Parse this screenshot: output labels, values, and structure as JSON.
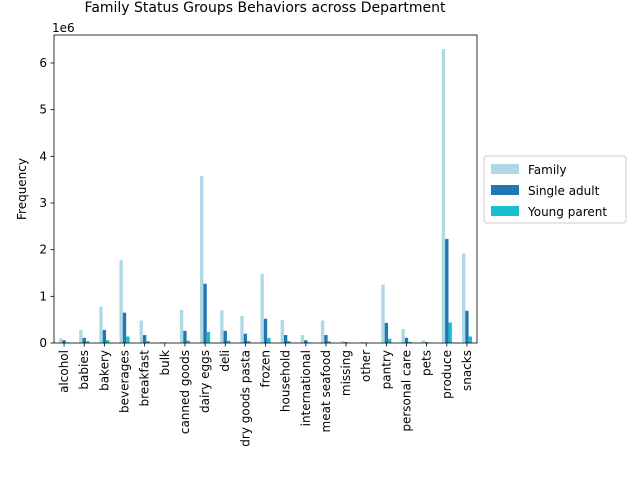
{
  "chart_data": {
    "type": "bar",
    "title": "Family Status Groups Behaviors across Department",
    "xlabel": "",
    "ylabel": "Frequency",
    "y_scale_label": "1e6",
    "ylim": [
      0,
      6600000
    ],
    "yticks": [
      0,
      1000000,
      2000000,
      3000000,
      4000000,
      5000000,
      6000000
    ],
    "ytick_labels": [
      "0",
      "1",
      "2",
      "3",
      "4",
      "5",
      "6"
    ],
    "grid": false,
    "legend_position": "center-right-outside",
    "categories": [
      "alcohol",
      "babies",
      "bakery",
      "beverages",
      "breakfast",
      "bulk",
      "canned goods",
      "dairy eggs",
      "deli",
      "dry goods pasta",
      "frozen",
      "household",
      "international",
      "meat seafood",
      "missing",
      "other",
      "pantry",
      "personal care",
      "pets",
      "produce",
      "snacks"
    ],
    "series": [
      {
        "name": "Family",
        "color": "#add8e6",
        "values": [
          100000,
          280000,
          780000,
          1780000,
          480000,
          20000,
          710000,
          3580000,
          700000,
          580000,
          1480000,
          490000,
          170000,
          480000,
          45000,
          25000,
          1250000,
          300000,
          60000,
          6300000,
          1920000
        ]
      },
      {
        "name": "Single adult",
        "color": "#1f77b4",
        "values": [
          60000,
          110000,
          280000,
          650000,
          170000,
          10000,
          260000,
          1270000,
          260000,
          200000,
          520000,
          170000,
          60000,
          170000,
          20000,
          10000,
          430000,
          110000,
          20000,
          2230000,
          690000
        ]
      },
      {
        "name": "Young parent",
        "color": "#17becf",
        "values": [
          15000,
          40000,
          60000,
          140000,
          40000,
          5000,
          50000,
          240000,
          50000,
          45000,
          110000,
          40000,
          15000,
          35000,
          5000,
          5000,
          90000,
          25000,
          5000,
          440000,
          140000
        ]
      }
    ]
  }
}
